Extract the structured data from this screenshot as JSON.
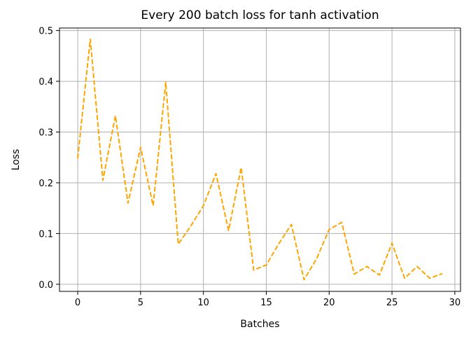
{
  "chart_data": {
    "type": "line",
    "title": "Every 200 batch loss for tanh activation",
    "xlabel": "Batches",
    "ylabel": "Loss",
    "xlim": [
      -1.45,
      30.45
    ],
    "ylim": [
      -0.014,
      0.505
    ],
    "xticks": [
      0,
      5,
      10,
      15,
      20,
      25,
      30
    ],
    "yticks": [
      0.0,
      0.1,
      0.2,
      0.3,
      0.4,
      0.5
    ],
    "xtick_labels": [
      "0",
      "5",
      "10",
      "15",
      "20",
      "25",
      "30"
    ],
    "ytick_labels": [
      "0.0",
      "0.1",
      "0.2",
      "0.3",
      "0.4",
      "0.5"
    ],
    "grid": true,
    "series": [
      {
        "color": "#ffa500",
        "linestyle": "dashed",
        "x": [
          0,
          1,
          2,
          3,
          4,
          5,
          6,
          7,
          8,
          9,
          10,
          11,
          12,
          13,
          14,
          15,
          16,
          17,
          18,
          19,
          20,
          21,
          22,
          23,
          24,
          25,
          26,
          27,
          28,
          29
        ],
        "values": [
          0.248,
          0.483,
          0.205,
          0.332,
          0.16,
          0.27,
          0.155,
          0.398,
          0.079,
          0.115,
          0.155,
          0.218,
          0.106,
          0.23,
          0.028,
          0.038,
          0.08,
          0.118,
          0.009,
          0.05,
          0.108,
          0.122,
          0.02,
          0.035,
          0.018,
          0.081,
          0.012,
          0.035,
          0.012,
          0.021
        ]
      }
    ]
  }
}
